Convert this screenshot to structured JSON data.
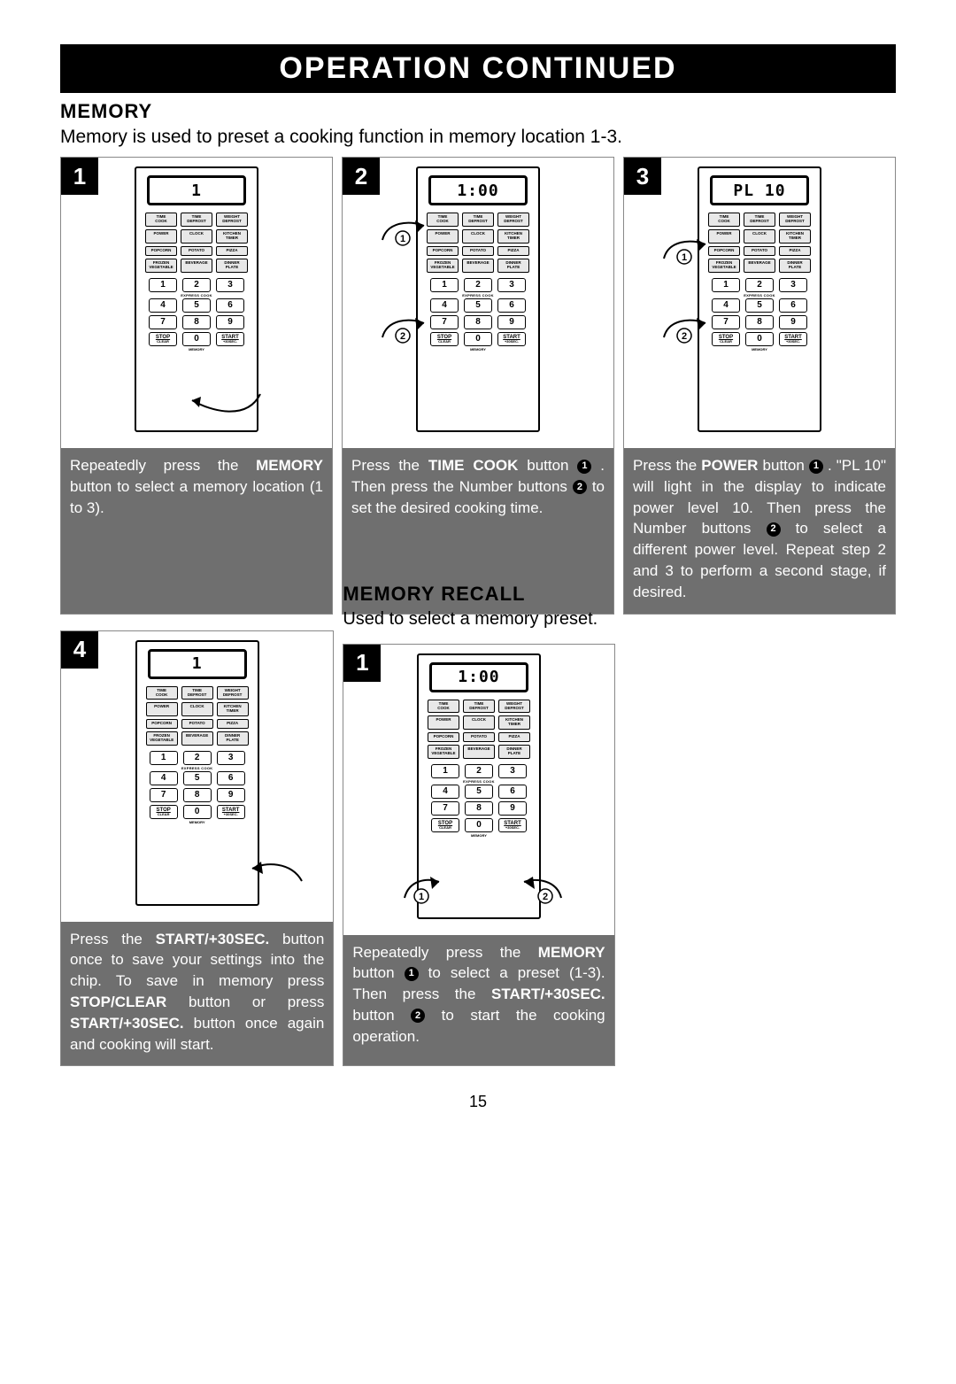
{
  "header": "OPERATION  CONTINUED",
  "memory": {
    "title": "MEMORY",
    "intro": "Memory is used to preset a cooking function in memory location 1-3."
  },
  "recall": {
    "title": "MEMORY RECALL",
    "intro": "Used to select a memory preset."
  },
  "page_number": "15",
  "panel": {
    "func_rows": [
      [
        "TIME COOK",
        "TIME DEFROST",
        "WEIGHT DEFROST"
      ],
      [
        "POWER",
        "CLOCK",
        "KITCHEN TIMER"
      ],
      [
        "POPCORN",
        "POTATO",
        "PIZZA"
      ],
      [
        "FROZEN VEGETABLE",
        "BEVERAGE",
        "DINNER PLATE"
      ]
    ],
    "express_label": "EXPRESS COOK",
    "memory_label": "MEMORY",
    "numpad": [
      [
        "1",
        "2",
        "3"
      ],
      [
        "4",
        "5",
        "6"
      ],
      [
        "7",
        "8",
        "9"
      ]
    ],
    "bottom": {
      "stop": "STOP",
      "stop_sub": "CLEAR",
      "zero": "0",
      "start": "START",
      "start_sub": "+30SEC."
    }
  },
  "steps": {
    "s1": {
      "num": "1",
      "display": "1",
      "caption_pre": "Repeatedly press the ",
      "caption_b1": "MEMORY",
      "caption_post": " button to select a memory location (1 to 3)."
    },
    "s2": {
      "num": "2",
      "display": "1:00",
      "caption_pre": "Press the ",
      "caption_b1": "TIME COOK",
      "caption_mid1": "  button ",
      "caption_mid2": " . Then press the Number buttons ",
      "caption_post": " to set the desired cooking time."
    },
    "s3": {
      "num": "3",
      "display": "PL 10",
      "caption_pre": "Press  the ",
      "caption_b1": "POWER",
      "caption_mid1": " button ",
      "caption_mid2": " . \"PL 10\" will light in the display to indicate power level 10. Then press the Number buttons ",
      "caption_post": " to select a different power level.  Repeat step 2 and 3 to perform a second stage, if desired."
    },
    "s4": {
      "num": "4",
      "display": "1",
      "caption_pre": "Press the ",
      "caption_b1": "START/+30SEC.",
      "caption_mid": " button once to save your settings into the chip. To save in memory press ",
      "caption_b2": "STOP/CLEAR",
      "caption_mid2": " button or press ",
      "caption_b3": "START/+30SEC.",
      "caption_post": " button once again and cooking will start."
    },
    "r1": {
      "num": "1",
      "display": "1:00",
      "caption_pre": "Repeatedly press the ",
      "caption_b1": "MEMORY",
      "caption_mid1": " button ",
      "caption_mid2": " to select a preset (1-3). Then press the ",
      "caption_b2": "START/+30SEC.",
      "caption_mid3": " button  ",
      "caption_post": " to start the cooking operation."
    }
  }
}
